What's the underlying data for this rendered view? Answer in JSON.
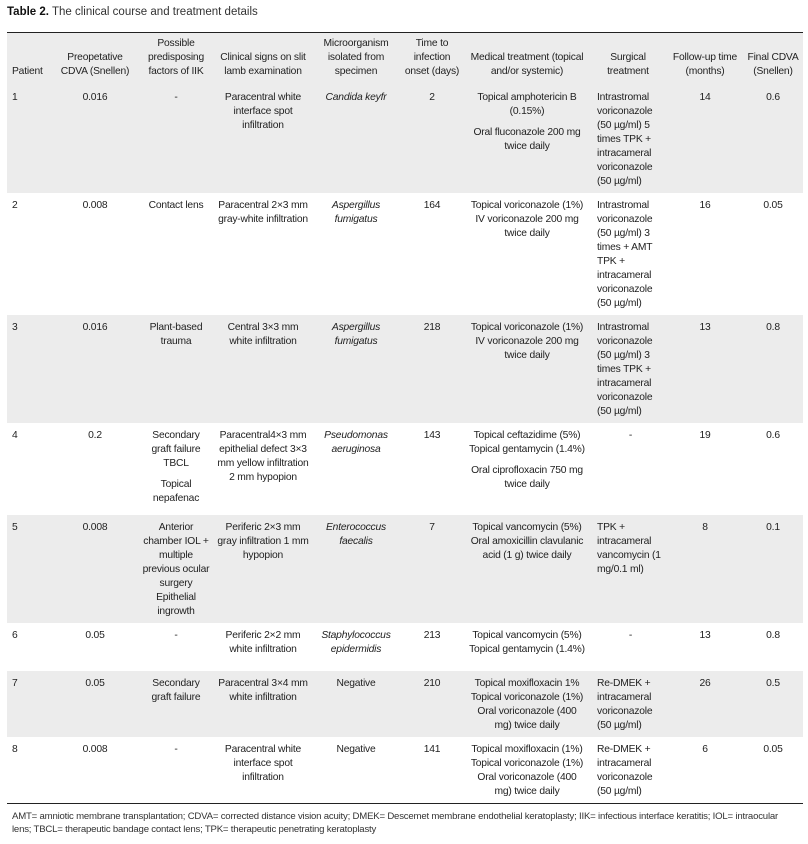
{
  "caption": {
    "label": "Table 2.",
    "title": "The clinical course and treatment details"
  },
  "headers": [
    "Patient",
    "Preopetative CDVA (Snellen)",
    "Possible predisposing factors of IIK",
    "Clinical signs on slit lamb examination",
    "Microorganism isolated from specimen",
    "Time to infection onset (days)",
    "Medical treatment (topical and/or systemic)",
    "Surgical treatment",
    "Follow-up time (months)",
    "Final CDVA (Snellen)"
  ],
  "rows": [
    {
      "patient": "1",
      "cdva": "0.016",
      "factors": [
        "-"
      ],
      "signs": "Paracentral white interface spot infiltration",
      "organism": "Candida keyfr",
      "onset": "2",
      "medical": [
        "Topical amphotericin B (0.15%)",
        "Oral fluconazole 200 mg twice daily"
      ],
      "surgical": "Intrastromal voriconazole (50 µg/ml) 5 times TPK + intracameral voriconazole (50 µg/ml)",
      "followup": "14",
      "final": "0.6"
    },
    {
      "patient": "2",
      "cdva": "0.008",
      "factors": [
        "Contact lens"
      ],
      "signs": "Paracentral 2×3 mm gray-white infiltration",
      "organism": "Aspergillus fumigatus",
      "onset": "164",
      "medical": [
        "Topical voriconazole (1%) IV voriconazole 200 mg twice daily"
      ],
      "surgical": "Intrastromal voriconazole (50 µg/ml) 3 times + AMT TPK + intracameral voriconazole (50 µg/ml)",
      "followup": "16",
      "final": "0.05"
    },
    {
      "patient": "3",
      "cdva": "0.016",
      "factors": [
        "Plant-based trauma"
      ],
      "signs": "Central 3×3 mm white infiltration",
      "organism": "Aspergillus fumigatus",
      "onset": "218",
      "medical": [
        "Topical voriconazole (1%) IV voriconazole 200 mg twice daily"
      ],
      "surgical": "Intrastromal voriconazole (50 µg/ml) 3 times TPK + intracameral voriconazole (50 µg/ml)",
      "followup": "13",
      "final": "0.8"
    },
    {
      "patient": "4",
      "cdva": "0.2",
      "factors": [
        "Secondary graft failure TBCL",
        "Topical nepafenac"
      ],
      "signs": "Paracentral4×3 mm epithelial defect 3×3 mm yellow infiltration 2 mm hypopion",
      "organism": "Pseudomonas aeruginosa",
      "onset": "143",
      "medical": [
        "Topical ceftazidime (5%) Topical gentamycin (1.4%)",
        "Oral ciprofloxacin 750 mg twice daily"
      ],
      "surgical": "-",
      "followup": "19",
      "final": "0.6"
    },
    {
      "patient": "5",
      "cdva": "0.008",
      "factors": [
        "Anterior chamber IOL + multiple previous ocular surgery Epithelial ingrowth"
      ],
      "signs": "Periferic 2×3 mm gray infiltration 1 mm hypopion",
      "organism": "Enterococcus faecalis",
      "onset": "7",
      "medical": [
        "Topical vancomycin (5%) Oral amoxicillin clavulanic acid (1 g) twice daily"
      ],
      "surgical": "TPK + intracameral vancomycin (1 mg/0.1 ml)",
      "followup": "8",
      "final": "0.1"
    },
    {
      "patient": "6",
      "cdva": "0.05",
      "factors": [
        "-"
      ],
      "signs": "Periferic 2×2 mm white infiltration",
      "organism": "Staphylococcus epidermidis",
      "onset": "213",
      "medical": [
        "Topical vancomycin (5%) Topical gentamycin (1.4%)"
      ],
      "surgical": "-",
      "followup": "13",
      "final": "0.8"
    },
    {
      "patient": "7",
      "cdva": "0.05",
      "factors": [
        "Secondary graft failure"
      ],
      "signs": "Paracentral 3×4 mm white infiltration",
      "organism": "Negative",
      "onset": "210",
      "medical": [
        "Topical moxifloxacin 1% Topical voriconazole (1%) Oral voriconazole (400 mg) twice daily"
      ],
      "surgical": "Re-DMEK + intracameral voriconazole (50 µg/ml)",
      "followup": "26",
      "final": "0.5"
    },
    {
      "patient": "8",
      "cdva": "0.008",
      "factors": [
        "-"
      ],
      "signs": "Paracentral white interface spot infiltration",
      "organism": "Negative",
      "onset": "141",
      "medical": [
        "Topical moxifloxacin (1%) Topical voriconazole (1%) Oral voriconazole (400 mg) twice daily"
      ],
      "surgical": "Re-DMEK + intracameral voriconazole (50 µg/ml)",
      "followup": "6",
      "final": "0.05"
    }
  ],
  "footnote": "AMT= amniotic membrane transplantation; CDVA= corrected distance vision acuity; DMEK= Descemet membrane endothelial keratoplasty; IIK= infectious interface keratitis; IOL= intraocular lens; TBCL= therapeutic bandage contact lens; TPK= therapeutic penetrating keratoplasty"
}
